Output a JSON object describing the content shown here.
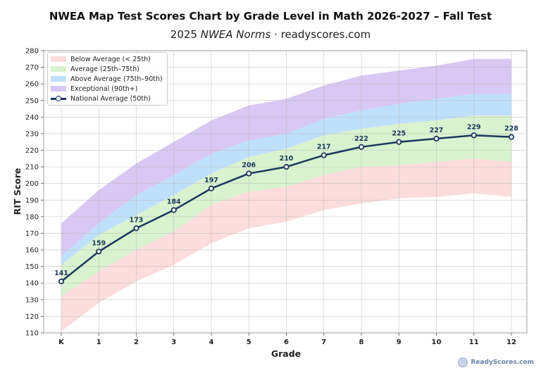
{
  "title": "NWEA Map Test Scores Chart by Grade Level in Math 2026-2027 – Fall Test",
  "subtitle_prefix": "2025 ",
  "subtitle_em": "NWEA Norms",
  "subtitle_suffix": " · readyscores.com",
  "watermark": "ReadyScores.com",
  "chart_data": {
    "type": "area",
    "xlabel": "Grade",
    "ylabel": "RIT Score",
    "categories": [
      "K",
      "1",
      "2",
      "3",
      "4",
      "5",
      "6",
      "7",
      "8",
      "9",
      "10",
      "11",
      "12"
    ],
    "ylim": [
      110,
      280
    ],
    "yticks": [
      110,
      120,
      130,
      140,
      150,
      160,
      170,
      180,
      190,
      200,
      210,
      220,
      230,
      240,
      250,
      260,
      270,
      280
    ],
    "grid": true,
    "legend_position": "top-left",
    "bands": [
      {
        "name": "Below Average (< 25th)",
        "color": "#fcdcdc",
        "lower": [
          111,
          128,
          141,
          151,
          164,
          173,
          177,
          184,
          188,
          191,
          192,
          194,
          192
        ],
        "upper": [
          132,
          147,
          160,
          171,
          187,
          195,
          198,
          205,
          210,
          211,
          213,
          215,
          213
        ]
      },
      {
        "name": "Average (25th–75th)",
        "color": "#d9f2d0",
        "lower": [
          132,
          147,
          160,
          171,
          187,
          195,
          198,
          205,
          210,
          211,
          213,
          215,
          213
        ],
        "upper": [
          151,
          169,
          181,
          193,
          206,
          216,
          221,
          229,
          233,
          236,
          238,
          241,
          241
        ]
      },
      {
        "name": "Above Average (75th–90th)",
        "color": "#bfe0fb",
        "lower": [
          151,
          169,
          181,
          193,
          206,
          216,
          221,
          229,
          233,
          236,
          238,
          241,
          241
        ],
        "upper": [
          156,
          176,
          193,
          205,
          218,
          226,
          230,
          239,
          244,
          248,
          251,
          254,
          254
        ]
      },
      {
        "name": "Exceptional (90th+)",
        "color": "#d8c8f3",
        "lower": [
          156,
          176,
          193,
          205,
          218,
          226,
          230,
          239,
          244,
          248,
          251,
          254,
          254
        ],
        "upper": [
          176,
          196,
          212,
          225,
          238,
          247,
          251,
          259,
          265,
          268,
          271,
          275,
          275
        ]
      }
    ],
    "series": [
      {
        "name": "National Average (50th)",
        "color": "#1b365d",
        "values": [
          141,
          159,
          173,
          184,
          197,
          206,
          210,
          217,
          222,
          225,
          227,
          229,
          228
        ]
      }
    ]
  }
}
